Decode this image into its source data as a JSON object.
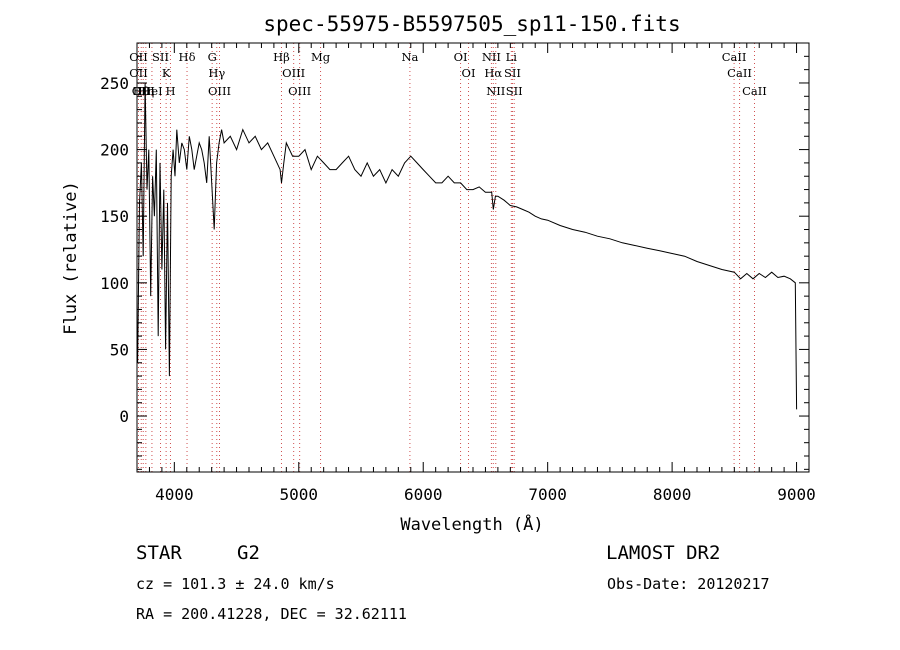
{
  "chart_data": {
    "type": "line",
    "title": "spec-55975-B5597505_sp11-150.fits",
    "xlabel": "Wavelength (Å)",
    "ylabel": "Flux (relative)",
    "xlim": [
      3700,
      9100
    ],
    "ylim": [
      -42,
      280
    ],
    "xticks": [
      "4000",
      "5000",
      "6000",
      "7000",
      "8000",
      "9000"
    ],
    "yticks": [
      "0",
      "50",
      "100",
      "150",
      "200",
      "250"
    ],
    "grid": false,
    "line_color": "#000000",
    "marker_color": "#d05050",
    "series": [
      {
        "x": [
          3705,
          3720,
          3735,
          3750,
          3765,
          3780,
          3795,
          3810,
          3825,
          3840,
          3855,
          3870,
          3885,
          3900,
          3915,
          3930,
          3945,
          3960,
          3975,
          3990,
          4005,
          4020,
          4040,
          4060,
          4080,
          4100,
          4120,
          4140,
          4160,
          4180,
          4200,
          4220,
          4240,
          4260,
          4280,
          4300,
          4320,
          4340,
          4360,
          4380,
          4400,
          4450,
          4500,
          4550,
          4600,
          4650,
          4700,
          4750,
          4800,
          4850,
          4861,
          4880,
          4900,
          4950,
          5000,
          5050,
          5100,
          5150,
          5200,
          5250,
          5300,
          5350,
          5400,
          5450,
          5500,
          5550,
          5600,
          5650,
          5700,
          5750,
          5800,
          5850,
          5900,
          5950,
          6000,
          6050,
          6100,
          6150,
          6200,
          6250,
          6300,
          6350,
          6400,
          6450,
          6500,
          6550,
          6563,
          6580,
          6600,
          6650,
          6700,
          6750,
          6800,
          6850,
          6900,
          6950,
          7000,
          7100,
          7200,
          7300,
          7400,
          7500,
          7600,
          7700,
          7800,
          7900,
          8000,
          8100,
          8200,
          8300,
          8400,
          8500,
          8550,
          8600,
          8650,
          8700,
          8750,
          8800,
          8850,
          8900,
          8950,
          8990,
          9000
        ],
        "y": [
          40,
          160,
          190,
          120,
          250,
          170,
          200,
          90,
          180,
          150,
          200,
          60,
          190,
          110,
          170,
          50,
          160,
          30,
          180,
          200,
          180,
          215,
          190,
          205,
          200,
          185,
          210,
          200,
          185,
          195,
          205,
          200,
          190,
          175,
          210,
          175,
          140,
          190,
          205,
          215,
          205,
          210,
          200,
          215,
          205,
          210,
          200,
          205,
          195,
          185,
          175,
          190,
          205,
          195,
          195,
          200,
          185,
          195,
          190,
          185,
          185,
          190,
          195,
          185,
          180,
          190,
          180,
          185,
          175,
          185,
          180,
          190,
          195,
          190,
          185,
          180,
          175,
          175,
          180,
          175,
          175,
          170,
          170,
          172,
          168,
          168,
          155,
          165,
          165,
          162,
          158,
          157,
          155,
          153,
          150,
          148,
          147,
          143,
          140,
          138,
          135,
          133,
          130,
          128,
          126,
          124,
          122,
          120,
          116,
          113,
          110,
          108,
          103,
          107,
          103,
          107,
          104,
          108,
          104,
          105,
          103,
          100,
          5
        ]
      }
    ],
    "lines": [
      {
        "wl": 3712,
        "labels": [
          "OII",
          "OII"
        ]
      },
      {
        "wl": 3734,
        "labels": [
          "Hθ"
        ]
      },
      {
        "wl": 3750,
        "labels": [
          "OIII"
        ]
      },
      {
        "wl": 3771,
        "labels": [
          "Hη"
        ]
      },
      {
        "wl": 3820,
        "labels": [
          "HeI"
        ]
      },
      {
        "wl": 3889,
        "labels": [
          "SII"
        ]
      },
      {
        "wl": 3934,
        "labels": [
          "K"
        ]
      },
      {
        "wl": 3969,
        "labels": [
          "H"
        ]
      },
      {
        "wl": 4102,
        "labels": [
          "Hδ"
        ]
      },
      {
        "wl": 4304,
        "labels": [
          "G"
        ]
      },
      {
        "wl": 4341,
        "labels": [
          "Hγ"
        ]
      },
      {
        "wl": 4363,
        "labels": [
          "OIII"
        ]
      },
      {
        "wl": 4861,
        "labels": [
          "Hβ"
        ]
      },
      {
        "wl": 4959,
        "labels": [
          "OIII"
        ]
      },
      {
        "wl": 5007,
        "labels": [
          "OIII"
        ]
      },
      {
        "wl": 5175,
        "labels": [
          "Mg"
        ]
      },
      {
        "wl": 5893,
        "labels": [
          "Na"
        ]
      },
      {
        "wl": 6300,
        "labels": [
          "OI"
        ]
      },
      {
        "wl": 6364,
        "labels": [
          "OI"
        ]
      },
      {
        "wl": 6548,
        "labels": [
          "NII"
        ]
      },
      {
        "wl": 6563,
        "labels": [
          "Hα"
        ]
      },
      {
        "wl": 6583,
        "labels": [
          "NII"
        ]
      },
      {
        "wl": 6708,
        "labels": [
          "Li"
        ]
      },
      {
        "wl": 6717,
        "labels": [
          "SII"
        ]
      },
      {
        "wl": 6731,
        "labels": [
          "SII"
        ]
      },
      {
        "wl": 8498,
        "labels": [
          "CaII"
        ]
      },
      {
        "wl": 8542,
        "labels": [
          "CaII"
        ]
      },
      {
        "wl": 8662,
        "labels": [
          "CaII"
        ]
      }
    ]
  },
  "info": {
    "object_class": "STAR",
    "subclass": "G2",
    "survey": "LAMOST DR2",
    "velocity": "cz = 101.3 ± 24.0 km/s",
    "obs_date": "Obs-Date: 20120217",
    "coords": "RA = 200.41228, DEC =  32.62111"
  }
}
